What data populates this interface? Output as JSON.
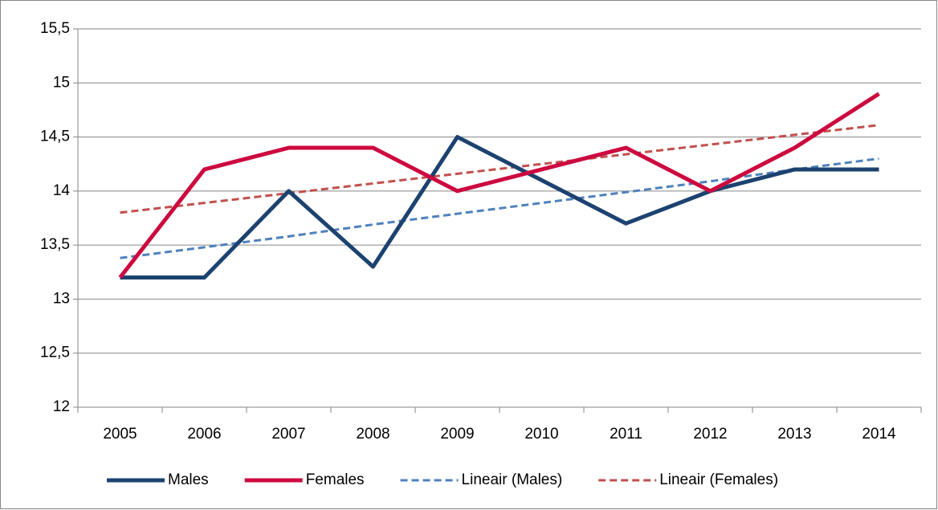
{
  "chart_data": {
    "type": "line",
    "categories": [
      "2005",
      "2006",
      "2007",
      "2008",
      "2009",
      "2010",
      "2011",
      "2012",
      "2013",
      "2014"
    ],
    "series": [
      {
        "name": "Males",
        "color": "#1c4270",
        "dashed": false,
        "values": [
          13.2,
          13.2,
          14,
          13.3,
          14.5,
          14.1,
          13.7,
          14,
          14.2,
          14.2
        ]
      },
      {
        "name": "Females",
        "color": "#cc0a3f",
        "dashed": false,
        "values": [
          13.2,
          14.2,
          14.4,
          14.4,
          14,
          14.2,
          14.4,
          14,
          14.4,
          14.9
        ]
      },
      {
        "name": "Lineair (Males)",
        "color": "#4f81bd",
        "dashed": true,
        "values": [
          13.38,
          13.48,
          13.58,
          13.69,
          13.79,
          13.89,
          13.99,
          14.09,
          14.2,
          14.3
        ]
      },
      {
        "name": "Lineair (Females)",
        "color": "#c0504d",
        "dashed": true,
        "values": [
          13.8,
          13.89,
          13.98,
          14.07,
          14.16,
          14.25,
          14.34,
          14.43,
          14.52,
          14.61
        ]
      }
    ],
    "ylim": [
      12,
      15.5
    ],
    "yticks": [
      12,
      {
        "value": 12.5,
        "label": "12,5"
      },
      13,
      {
        "value": 13.5,
        "label": "13,5"
      },
      14,
      {
        "value": 14.5,
        "label": "14,5"
      },
      15,
      {
        "value": 15.5,
        "label": "15,5"
      }
    ],
    "grid": true,
    "legend": "bottom"
  }
}
